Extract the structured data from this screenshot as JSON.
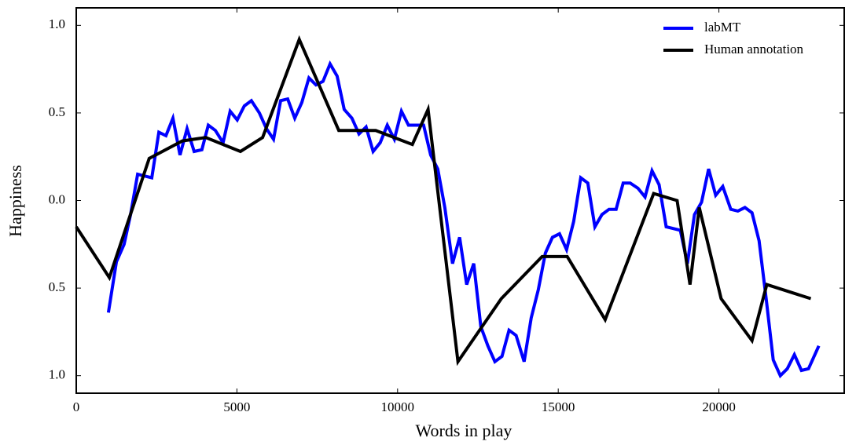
{
  "chart_data": {
    "type": "line",
    "xlabel": "Words in play",
    "ylabel": "Happiness",
    "xlim": [
      0,
      23900
    ],
    "ylim": [
      -1.1,
      1.1
    ],
    "xticks": [
      0,
      5000,
      10000,
      15000,
      20000
    ],
    "yticks": [
      {
        "value": -1,
        "label": "1.0"
      },
      {
        "value": -0.5,
        "label": "0.5"
      },
      {
        "value": 0,
        "label": "0.0"
      },
      {
        "value": 0.5,
        "label": "0.5"
      },
      {
        "value": 1,
        "label": "1.0"
      }
    ],
    "legend": "upper right",
    "series": [
      {
        "name": "labMT",
        "color": "#0000ff",
        "x": [
          1000,
          1250,
          1490,
          1690,
          1910,
          2130,
          2350,
          2570,
          2790,
          3010,
          3230,
          3450,
          3670,
          3910,
          4110,
          4330,
          4570,
          4790,
          5010,
          5230,
          5450,
          5700,
          5920,
          6140,
          6360,
          6580,
          6800,
          7020,
          7240,
          7460,
          7680,
          7900,
          8120,
          8340,
          8580,
          8800,
          9020,
          9240,
          9460,
          9680,
          9900,
          10120,
          10340,
          10560,
          10810,
          11030,
          11250,
          11470,
          11710,
          11930,
          12150,
          12370,
          12590,
          12810,
          13030,
          13250,
          13470,
          13690,
          13940,
          14160,
          14380,
          14600,
          14820,
          15040,
          15260,
          15480,
          15700,
          15920,
          16140,
          16360,
          16580,
          16800,
          17020,
          17240,
          17480,
          17700,
          17920,
          18140,
          18360,
          18580,
          18800,
          19020,
          19240,
          19460,
          19680,
          19900,
          20120,
          20370,
          20590,
          20810,
          21030,
          21250,
          21470,
          21690,
          21910,
          22130,
          22350,
          22570,
          22790,
          23110
        ],
        "values": [
          -0.64,
          -0.35,
          -0.25,
          -0.08,
          0.15,
          0.14,
          0.13,
          0.39,
          0.37,
          0.47,
          0.26,
          0.41,
          0.28,
          0.29,
          0.43,
          0.4,
          0.33,
          0.51,
          0.46,
          0.54,
          0.57,
          0.5,
          0.41,
          0.35,
          0.57,
          0.58,
          0.47,
          0.56,
          0.7,
          0.66,
          0.68,
          0.78,
          0.71,
          0.52,
          0.47,
          0.38,
          0.42,
          0.28,
          0.33,
          0.43,
          0.35,
          0.51,
          0.43,
          0.43,
          0.43,
          0.26,
          0.18,
          -0.04,
          -0.36,
          -0.21,
          -0.48,
          -0.36,
          -0.72,
          -0.83,
          -0.92,
          -0.89,
          -0.74,
          -0.77,
          -0.92,
          -0.67,
          -0.51,
          -0.3,
          -0.21,
          -0.19,
          -0.28,
          -0.12,
          0.13,
          0.1,
          -0.15,
          -0.08,
          -0.05,
          -0.05,
          0.1,
          0.1,
          0.07,
          0.02,
          0.17,
          0.09,
          -0.15,
          -0.16,
          -0.17,
          -0.36,
          -0.08,
          -0.01,
          0.18,
          0.03,
          0.08,
          -0.05,
          -0.06,
          -0.04,
          -0.07,
          -0.23,
          -0.56,
          -0.91,
          -1.0,
          -0.96,
          -0.88,
          -0.97,
          -0.96,
          -0.83
        ]
      },
      {
        "name": "Human annotation",
        "color": "#000000",
        "x": [
          0,
          1030,
          2270,
          3300,
          4030,
          5110,
          5800,
          6940,
          8170,
          9320,
          10460,
          10950,
          11880,
          13230,
          14500,
          15280,
          16460,
          17970,
          18700,
          19100,
          19390,
          20070,
          21030,
          21490,
          22860
        ],
        "values": [
          -0.15,
          -0.44,
          0.24,
          0.34,
          0.36,
          0.28,
          0.36,
          0.92,
          0.4,
          0.4,
          0.32,
          0.52,
          -0.92,
          -0.56,
          -0.32,
          -0.32,
          -0.68,
          0.04,
          0.0,
          -0.48,
          -0.04,
          -0.56,
          -0.8,
          -0.48,
          -0.56
        ]
      }
    ]
  }
}
